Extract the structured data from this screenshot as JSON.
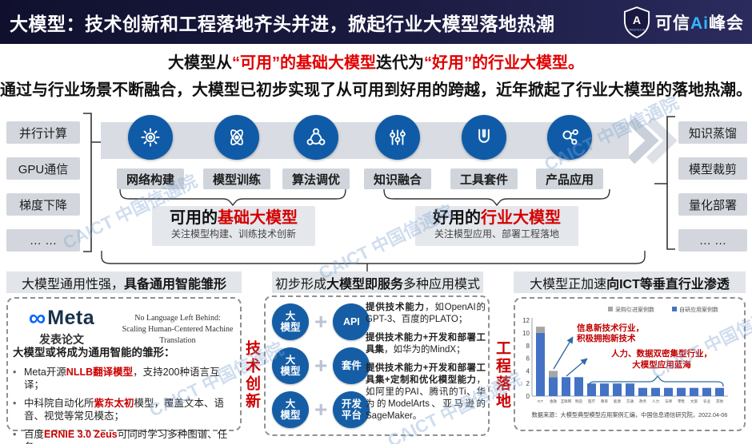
{
  "header": {
    "title": "大模型：技术创新和工程落地齐头并进，掀起行业大模型落地热潮",
    "logo": {
      "shield_letter": "A",
      "shield_caption": "TRUSTED AI",
      "text_1": "可信",
      "text_2": "Ai",
      "text_3": "峰会"
    }
  },
  "intro": {
    "line1": [
      {
        "t": "大模型从"
      },
      {
        "t": "“可用”"
      },
      {
        "t": "的基础大模型"
      },
      {
        "t": "迭代为"
      },
      {
        "t": "“好用”"
      },
      {
        "t": "的行业大模型。"
      }
    ],
    "line2": "通过与行业场景不断融合，大模型已初步实现了从可用到好用的跨越，近年掀起了行业大模型的落地热潮。"
  },
  "flow": {
    "left_items": [
      "并行计算",
      "GPU通信",
      "梯度下降",
      "… …"
    ],
    "right_items": [
      "知识蒸馏",
      "模型裁剪",
      "量化部署",
      "… …"
    ],
    "steps": [
      {
        "icon": "gear-icon",
        "label": "网络构建"
      },
      {
        "icon": "atom-icon",
        "label": "模型训练"
      },
      {
        "icon": "cycle-nodes-icon",
        "label": "算法调优"
      },
      {
        "icon": "sliders-icon",
        "label": "知识融合"
      },
      {
        "icon": "wrench-icon",
        "label": "工具套件"
      },
      {
        "icon": "molecule-icon",
        "label": "产品应用"
      }
    ],
    "usable": {
      "prefix": "可用的",
      "highlight": "基础大模型",
      "subtitle": "关注模型构建、训练技术创新"
    },
    "useful": {
      "prefix": "好用的",
      "highlight": "行业大模型",
      "subtitle": "关注模型应用、部署工程落地"
    }
  },
  "panel1": {
    "title_pre": "大模型通用性强，",
    "title_bold": "具备通用智能雏形",
    "meta_infinity": "∞",
    "meta_word": "Meta",
    "meta_sub": "发表论文",
    "paper_line1": "No Language Left Behind:",
    "paper_line2": "Scaling Human-Centered Machine Translation",
    "list_header": "大模型或将成为通用智能的雏形：",
    "bullet_marker": "•",
    "bullets": [
      {
        "pre": "Meta开源",
        "red": "NLLB翻译模型",
        "post": "，支持200种语言互译；"
      },
      {
        "pre": "中科院自动化所",
        "red": "紫东太初",
        "post": "模型，覆盖文本、语音、视觉等常见模态；"
      },
      {
        "pre": "百度",
        "red": "ERNIE 3.0 Zeus",
        "post": "可同时学习多种图谱、任务。"
      }
    ]
  },
  "panel2": {
    "title_pre": "初步形成",
    "title_bold": "大模型即服务",
    "title_post": "多种应用模式",
    "left_vertical": "技术创新",
    "right_vertical": "工程落地",
    "plus": "+",
    "rows": [
      {
        "left_l1": "大",
        "left_l2": "模型",
        "right_l1": "API",
        "right_l2": ""
      },
      {
        "left_l1": "大",
        "left_l2": "模型",
        "right_l1": "套件",
        "right_l2": ""
      },
      {
        "left_l1": "大",
        "left_l2": "模型",
        "right_l1": "开发",
        "right_l2": "平台"
      }
    ],
    "bullet_marker": "·",
    "bullets": [
      {
        "bold": "提供技术能力",
        "rest": "，如OpenAI的GPT-3、百度的PLATO；"
      },
      {
        "bold": "提供技术能力+开发和部署工具集",
        "rest": "，如华为的MindX；"
      },
      {
        "bold": "提供技术能力+开发和部署工具集+定制和优化模型能力",
        "rest": "，如阿里的PAI、腾讯的Ti、华为的ModelArts、亚马逊的SageMaker。"
      }
    ]
  },
  "panel3": {
    "title_pre": "大模型正加速",
    "title_bold": "向ICT等垂直行业渗透"
  },
  "chart_data": {
    "type": "bar",
    "stacked": true,
    "title": "大模型正加速向ICT等垂直行业渗透",
    "categories": [
      "ICT",
      "金融",
      "互联网",
      "制造",
      "医疗",
      "教育",
      "能源",
      "交通",
      "政务",
      "人力",
      "法律",
      "零售",
      "文旅",
      "农业",
      "其他"
    ],
    "series": [
      {
        "name": "自研应用案例数",
        "color": "#4472c4",
        "values": [
          10,
          3,
          3,
          3,
          2,
          2,
          2,
          2,
          1.3,
          1.3,
          1.3,
          1.3,
          1.3,
          1.3,
          1.3
        ]
      },
      {
        "name": "采购引进案例数",
        "color": "#a6a6a6",
        "values": [
          1,
          1,
          0,
          0,
          0,
          0,
          0,
          0,
          0,
          0,
          0,
          0,
          0,
          0,
          0
        ]
      }
    ],
    "ylim": [
      0,
      12
    ],
    "yticks": [
      0,
      2,
      4,
      6,
      8,
      10,
      12
    ],
    "grid": false,
    "legend_position": "top",
    "annotations": [
      {
        "lines": [
          "信息新技术行业，",
          "积极拥抱新技术"
        ]
      },
      {
        "lines": [
          "人力、数据双密集型行业，",
          "大模型应用蓝海"
        ]
      }
    ],
    "source": "数据来源：大模型典型模型应用案例汇编，中国信息通信研究院，2022.04-06"
  },
  "watermark": "CAICT 中国信通院"
}
